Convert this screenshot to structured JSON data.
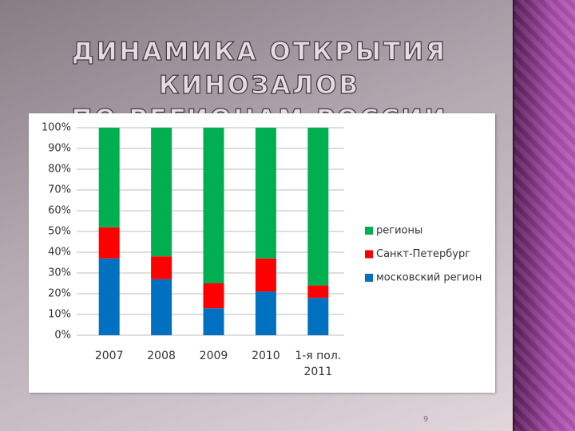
{
  "chart_data": {
    "type": "stacked_bar",
    "title": "ДИНАМИКА ОТКРЫТИЯ КИНОЗАЛОВ\nПО РЕГИОНАМ РОССИИ",
    "categories": [
      "2007",
      "2008",
      "2009",
      "2010",
      "1-я пол.\n2011"
    ],
    "series": [
      {
        "name": "московский регион",
        "color": "#0070c0",
        "values": [
          37,
          27,
          13,
          21,
          18
        ]
      },
      {
        "name": "Санкт-Петербург",
        "color": "#ff0000",
        "values": [
          15,
          11,
          12,
          16,
          6
        ]
      },
      {
        "name": "регионы",
        "color": "#00b050",
        "values": [
          48,
          62,
          75,
          63,
          76
        ]
      }
    ],
    "ylim": [
      0,
      100
    ],
    "yticks": [
      {
        "value": 0,
        "label": "0%"
      },
      {
        "value": 10,
        "label": "10%"
      },
      {
        "value": 20,
        "label": "20%"
      },
      {
        "value": 30,
        "label": "30%"
      },
      {
        "value": 40,
        "label": "40%"
      },
      {
        "value": 50,
        "label": "50%"
      },
      {
        "value": 60,
        "label": "60%"
      },
      {
        "value": 70,
        "label": "70%"
      },
      {
        "value": 80,
        "label": "80%"
      },
      {
        "value": 90,
        "label": "90%"
      },
      {
        "value": 100,
        "label": "100%"
      }
    ],
    "grid": true,
    "legend": "right"
  },
  "page_number": "9"
}
